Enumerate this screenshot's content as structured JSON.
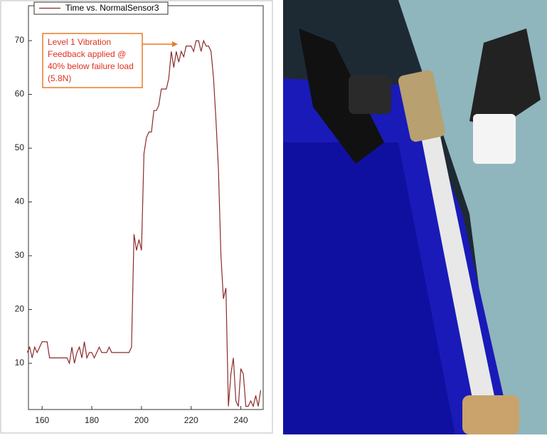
{
  "chart_data": {
    "type": "line",
    "legend": "Time vs. NormalSensor3",
    "annotation": [
      "Level 1 Vibration",
      "Feedback applied @",
      "40% below failure load",
      "(5.8N)"
    ],
    "color": "#8b2a2a",
    "x": [
      154,
      155,
      156,
      157,
      158,
      159,
      160,
      161,
      162,
      163,
      164,
      165,
      166,
      167,
      168,
      169,
      170,
      171,
      172,
      173,
      174,
      175,
      176,
      177,
      178,
      179,
      180,
      181,
      182,
      183,
      184,
      185,
      186,
      187,
      188,
      189,
      190,
      191,
      192,
      193,
      194,
      195,
      196,
      197,
      198,
      199,
      200,
      201,
      202,
      203,
      204,
      205,
      206,
      207,
      208,
      209,
      210,
      211,
      212,
      213,
      214,
      215,
      216,
      217,
      218,
      219,
      220,
      221,
      222,
      223,
      224,
      225,
      226,
      227,
      228,
      229,
      230,
      231,
      232,
      233,
      234,
      235,
      236,
      237,
      238,
      239,
      240,
      241,
      242,
      243,
      244,
      245,
      246,
      247,
      248
    ],
    "values": [
      12,
      13,
      11,
      13,
      12,
      13,
      14,
      14,
      14,
      11,
      11,
      11,
      11,
      11,
      11,
      11,
      11,
      10,
      13,
      10,
      12,
      13,
      11,
      14,
      11,
      12,
      12,
      11,
      12,
      13,
      12,
      12,
      12,
      13,
      12,
      12,
      12,
      12,
      12,
      12,
      12,
      12,
      13,
      34,
      31,
      33,
      31,
      49,
      52,
      53,
      53,
      57,
      57,
      58,
      61,
      61,
      61,
      63,
      68,
      65,
      68,
      66,
      68,
      67,
      69,
      69,
      69,
      68,
      70,
      70,
      68,
      70,
      69,
      69,
      68,
      63,
      55,
      46,
      30,
      22,
      24,
      2,
      8,
      11,
      3,
      2,
      9,
      8,
      2,
      2,
      3,
      2,
      4,
      2,
      5
    ],
    "xlim": [
      154.5,
      249
    ],
    "ylim": [
      1.4,
      76.5
    ],
    "xticks": [
      160,
      180,
      200,
      220,
      240
    ],
    "yticks": [
      10,
      20,
      30,
      40,
      50,
      60,
      70
    ]
  }
}
